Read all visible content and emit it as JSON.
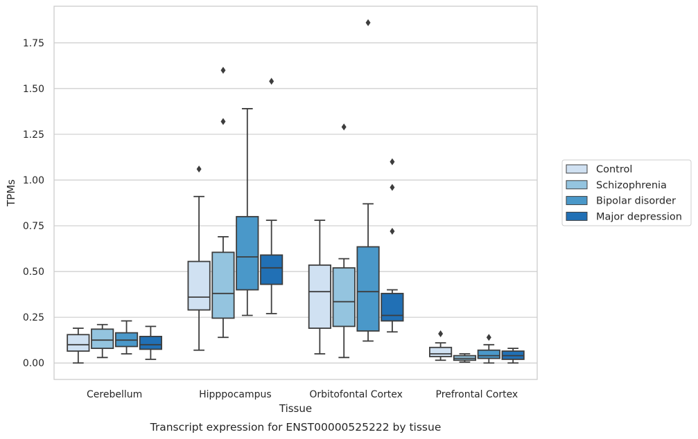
{
  "chart_data": {
    "type": "box",
    "caption": "Transcript expression for ENST00000525222 by tissue",
    "xlabel": "Tissue",
    "ylabel": "TPMs",
    "ylim": [
      -0.09,
      1.95
    ],
    "yticks": [
      "0.00",
      "0.25",
      "0.50",
      "0.75",
      "1.00",
      "1.25",
      "1.50",
      "1.75"
    ],
    "ytick_values": [
      0,
      0.25,
      0.5,
      0.75,
      1.0,
      1.25,
      1.5,
      1.75
    ],
    "grid": true,
    "legend_position": "right",
    "categories": [
      "Cerebellum",
      "Hipppocampus",
      "Orbitofontal Cortex",
      "Prefrontal Cortex"
    ],
    "series": [
      {
        "name": "Control",
        "color": "#d0e1f2",
        "boxes": [
          {
            "whislo": 0.0,
            "q1": 0.065,
            "med": 0.1,
            "q3": 0.155,
            "whishi": 0.19,
            "fliers": []
          },
          {
            "whislo": 0.07,
            "q1": 0.29,
            "med": 0.36,
            "q3": 0.555,
            "whishi": 0.91,
            "fliers": [
              1.06
            ]
          },
          {
            "whislo": 0.05,
            "q1": 0.19,
            "med": 0.39,
            "q3": 0.535,
            "whishi": 0.78,
            "fliers": []
          },
          {
            "whislo": 0.015,
            "q1": 0.035,
            "med": 0.05,
            "q3": 0.085,
            "whishi": 0.11,
            "fliers": [
              0.16
            ]
          }
        ]
      },
      {
        "name": "Schizophrenia",
        "color": "#94c4df",
        "boxes": [
          {
            "whislo": 0.03,
            "q1": 0.08,
            "med": 0.125,
            "q3": 0.185,
            "whishi": 0.21,
            "fliers": []
          },
          {
            "whislo": 0.14,
            "q1": 0.245,
            "med": 0.38,
            "q3": 0.605,
            "whishi": 0.69,
            "fliers": [
              1.32,
              1.6
            ]
          },
          {
            "whislo": 0.03,
            "q1": 0.2,
            "med": 0.335,
            "q3": 0.52,
            "whishi": 0.57,
            "fliers": [
              1.29
            ]
          },
          {
            "whislo": 0.005,
            "q1": 0.015,
            "med": 0.025,
            "q3": 0.04,
            "whishi": 0.05,
            "fliers": []
          }
        ]
      },
      {
        "name": "Bipolar disorder",
        "color": "#4a98c9",
        "boxes": [
          {
            "whislo": 0.05,
            "q1": 0.09,
            "med": 0.125,
            "q3": 0.165,
            "whishi": 0.23,
            "fliers": []
          },
          {
            "whislo": 0.26,
            "q1": 0.4,
            "med": 0.58,
            "q3": 0.8,
            "whishi": 1.39,
            "fliers": []
          },
          {
            "whislo": 0.12,
            "q1": 0.175,
            "med": 0.39,
            "q3": 0.635,
            "whishi": 0.87,
            "fliers": [
              1.86
            ]
          },
          {
            "whislo": 0.0,
            "q1": 0.025,
            "med": 0.04,
            "q3": 0.07,
            "whishi": 0.1,
            "fliers": [
              0.14
            ]
          }
        ]
      },
      {
        "name": "Major depression",
        "color": "#2170b5",
        "boxes": [
          {
            "whislo": 0.02,
            "q1": 0.075,
            "med": 0.1,
            "q3": 0.145,
            "whishi": 0.2,
            "fliers": []
          },
          {
            "whislo": 0.27,
            "q1": 0.43,
            "med": 0.52,
            "q3": 0.59,
            "whishi": 0.78,
            "fliers": [
              1.54
            ]
          },
          {
            "whislo": 0.17,
            "q1": 0.23,
            "med": 0.26,
            "q3": 0.38,
            "whishi": 0.4,
            "fliers": [
              0.72,
              0.96,
              1.1
            ]
          },
          {
            "whislo": 0.0,
            "q1": 0.02,
            "med": 0.04,
            "q3": 0.065,
            "whishi": 0.08,
            "fliers": []
          }
        ]
      }
    ]
  }
}
